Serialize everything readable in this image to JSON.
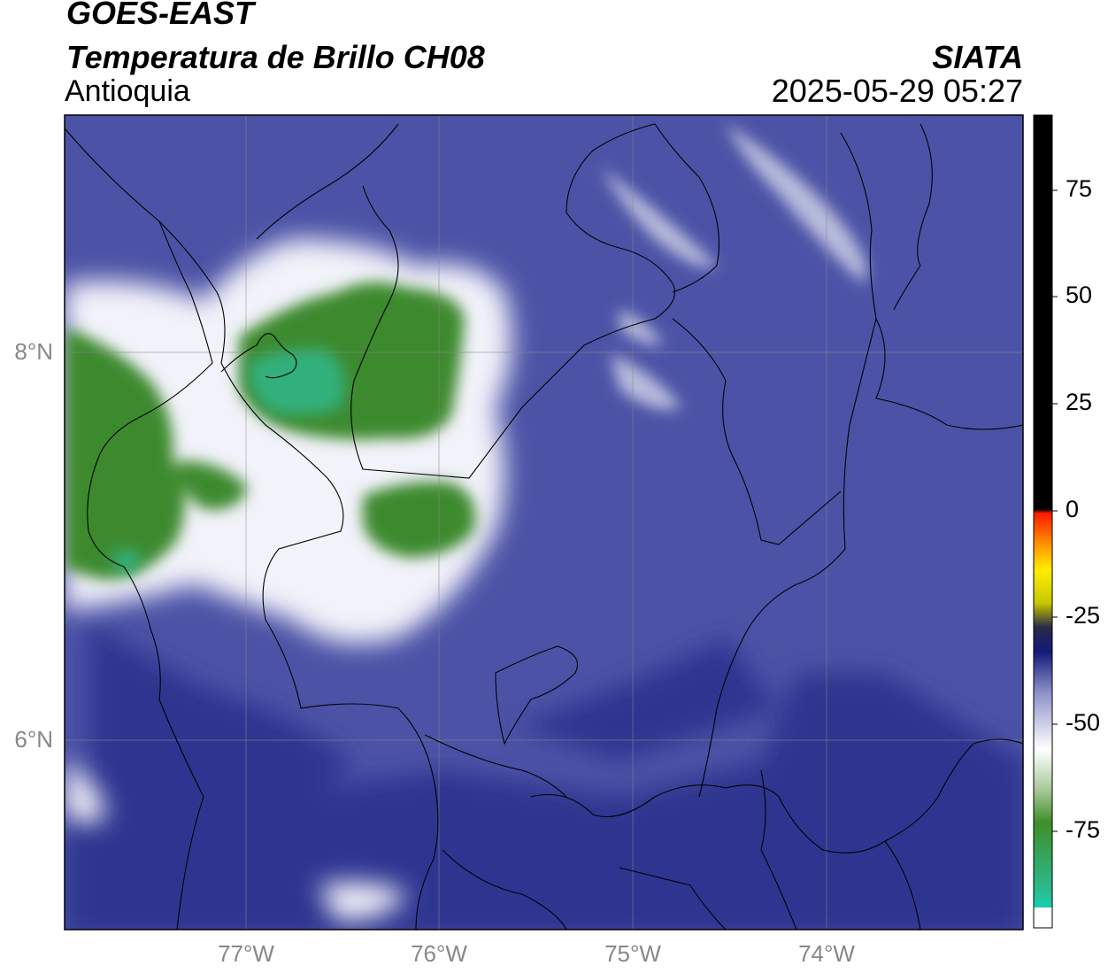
{
  "header": {
    "satellite": "GOES-EAST",
    "product": "Temperatura de Brillo CH08",
    "region": "Antioquia",
    "organization": "SIATA",
    "timestamp": "2025-05-29 05:27"
  },
  "map": {
    "latitude_labels": [
      "8°N",
      "6°N"
    ],
    "longitude_labels": [
      "77°W",
      "76°W",
      "75°W",
      "74°W"
    ]
  },
  "colorbar": {
    "tick_labels": [
      "75",
      "50",
      "25",
      "0",
      "-25",
      "-50",
      "-75"
    ],
    "colors": {
      "cyan": "#00e5d8",
      "teal": "#2db88a",
      "green": "#3e8f2a",
      "white": "#ffffff",
      "light_blue": "#b8bcdc",
      "blue": "#4e54a8",
      "navy": "#121a78",
      "dark": "#2a2a48",
      "yellow": "#ffee00",
      "orange": "#ff9900",
      "red": "#ff1a00",
      "black": "#000000"
    }
  },
  "colors": {
    "background_blue": "#4c53a6",
    "dark_blue": "#2f3690",
    "cloud_white": "#f2f2fa",
    "cloud_green": "#3c8a2e",
    "cloud_core": "#33b07c",
    "grid": "#888888",
    "label_gray": "#888888"
  }
}
